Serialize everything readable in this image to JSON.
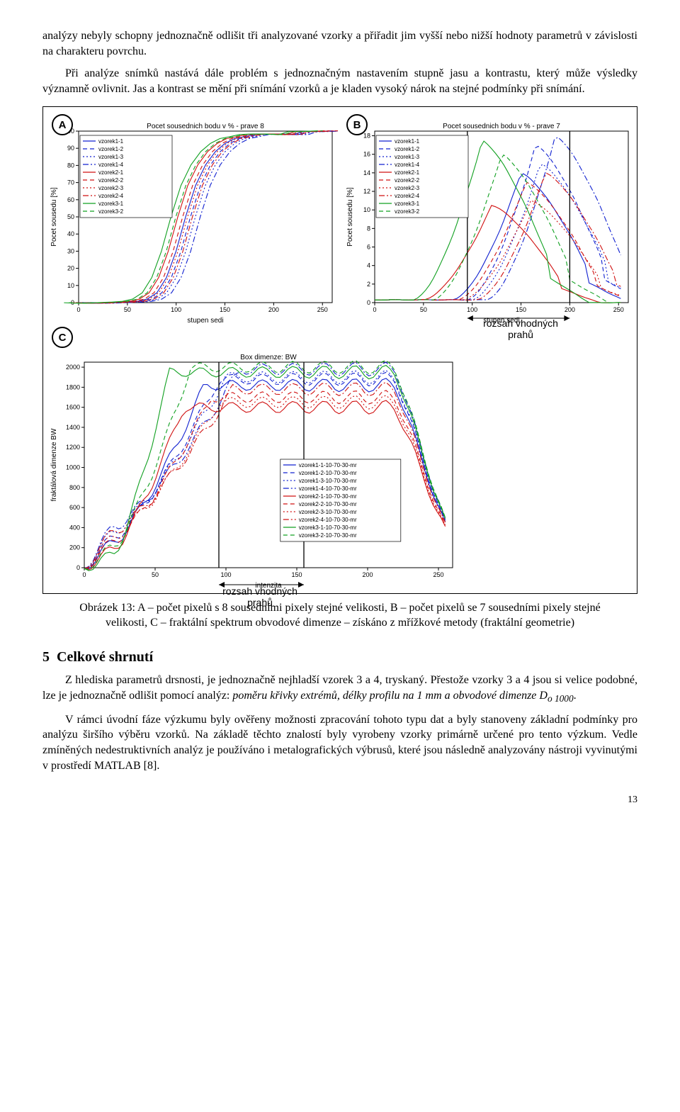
{
  "para1": "analýzy nebyly schopny jednoznačně odlišit tři analyzované vzorky a přiřadit jim vyšší nebo nižší hodnoty parametrů v závislosti na charakteru povrchu.",
  "para2": "Při analýze snímků nastává dále problém s jednoznačným nastavením stupně jasu a kontrastu, který může výsledky významně ovlivnit. Jas a kontrast se mění při snímání vzorků a je kladen vysoký nárok na stejné podmínky při snímání.",
  "caption": "Obrázek 13: A – počet pixelů s 8 sousedními pixely stejné velikosti, B – počet pixelů se 7 sousedními pixely stejné velikosti, C – fraktální spektrum obvodové dimenze – získáno z mřížkové metody (fraktální geometrie)",
  "section_num": "5",
  "section_title": "Celkové shrnutí",
  "para3a": "Z hlediska parametrů drsnosti, je jednoznačně nejhladší vzorek 3 a 4, tryskaný. Přestože vzorky 3 a 4 jsou si velice podobné, lze je jednoznačně odlišit pomocí analýz: ",
  "para3b": "poměru křivky extrémů, délky profilu na 1 mm a obvodové dimenze D",
  "para3c": "o 1000",
  "para3d": ".",
  "para4": "V rámci úvodní fáze výzkumu byly ověřeny možnosti zpracování tohoto typu dat a byly stanoveny základní podmínky pro analýzu širšího výběru vzorků. Na základě těchto znalostí byly vyrobeny vzorky primárně určené pro tento výzkum. Vedle zmíněných nedestruktivních analýz je používáno i metalografických výbrusů, které jsou následně analyzovány nástroji vyvinutými v prostředí MATLAB [8].",
  "pagenum": "13",
  "annoB": "rozsah vhodných prahů",
  "annoC": "rozsah vhodných prahů",
  "series_colors": {
    "s1": "#1020d0",
    "s2": "#1020d0",
    "s3": "#1020d0",
    "s4": "#1020d0",
    "s5": "#d01010",
    "s6": "#d01010",
    "s7": "#d01010",
    "s8": "#d01010",
    "s9": "#10a020",
    "s10": "#10a020"
  },
  "series_dash": {
    "s1": "",
    "s2": "6 4",
    "s3": "2 3",
    "s4": "8 3 2 3",
    "s5": "",
    "s6": "6 4",
    "s7": "2 3",
    "s8": "8 3 2 3",
    "s9": "",
    "s10": "6 4"
  },
  "legendA": [
    "vzorek1-1",
    "vzorek1-2",
    "vzorek1-3",
    "vzorek1-4",
    "vzorek2-1",
    "vzorek2-2",
    "vzorek2-3",
    "vzorek2-4",
    "vzorek3-1",
    "vzorek3-2"
  ],
  "legendC": [
    "vzorek1-1-10-70-30-mr",
    "vzorek1-2-10-70-30-mr",
    "vzorek1-3-10-70-30-mr",
    "vzorek1-4-10-70-30-mr",
    "vzorek2-1-10-70-30-mr",
    "vzorek2-2-10-70-30-mr",
    "vzorek2-3-10-70-30-mr",
    "vzorek2-4-10-70-30-mr",
    "vzorek3-1-10-70-30-mr",
    "vzorek3-2-10-70-30-mr"
  ],
  "chartA": {
    "title": "Pocet sousednich bodu v % - prave 8",
    "xlabel": "stupen sedi",
    "ylabel": "Pocet sousedu [%]",
    "xlim": [
      0,
      260
    ],
    "ylim": [
      0,
      100
    ],
    "xticks": [
      0,
      50,
      100,
      150,
      200,
      250
    ],
    "yticks": [
      0,
      10,
      20,
      30,
      40,
      50,
      60,
      70,
      80,
      90,
      100
    ],
    "xshift": [
      0,
      5,
      10,
      15,
      -8,
      -3,
      2,
      7,
      -15,
      -10
    ],
    "ycurve": [
      0,
      0,
      0,
      0,
      0,
      0,
      0.5,
      2,
      6,
      15,
      30,
      50,
      68,
      80,
      88,
      93,
      96,
      97,
      98,
      98,
      98,
      98,
      98,
      100,
      100,
      100,
      100
    ]
  },
  "chartB": {
    "title": "Pocet sousednich bodu v % - prave 7",
    "xlabel": "stupen sedi",
    "ylabel": "Pocet sousedu [%]",
    "xlim": [
      0,
      260
    ],
    "ylim": [
      0,
      18.5
    ],
    "xticks": [
      0,
      50,
      100,
      150,
      200,
      250
    ],
    "yticks": [
      0,
      2,
      4,
      6,
      8,
      10,
      12,
      14,
      16,
      18
    ],
    "peaks_x": [
      150,
      165,
      170,
      185,
      120,
      155,
      160,
      175,
      110,
      130
    ],
    "peaks_h": [
      14,
      17,
      15,
      18,
      10.5,
      13,
      11,
      14,
      17.5,
      16
    ],
    "bars_x": [
      95,
      200
    ]
  },
  "chartC": {
    "title": "Box dimenze: BW",
    "xlabel": "intenzita",
    "ylabel": "fraktálová dimenze BW",
    "xlim": [
      0,
      260
    ],
    "ylim": [
      0,
      2050
    ],
    "xticks": [
      0,
      50,
      100,
      150,
      200,
      250
    ],
    "yticks": [
      0,
      200,
      400,
      600,
      800,
      1000,
      1200,
      1400,
      1600,
      1800,
      2000
    ],
    "plateau": [
      1820,
      1880,
      1900,
      1980,
      1600,
      1700,
      1650,
      1780,
      1950,
      2000
    ],
    "rise_end": [
      85,
      95,
      100,
      110,
      70,
      90,
      95,
      105,
      60,
      75
    ],
    "start_y": [
      250,
      300,
      350,
      400,
      180,
      260,
      300,
      360,
      120,
      200
    ],
    "bars_x": [
      95,
      155
    ]
  }
}
